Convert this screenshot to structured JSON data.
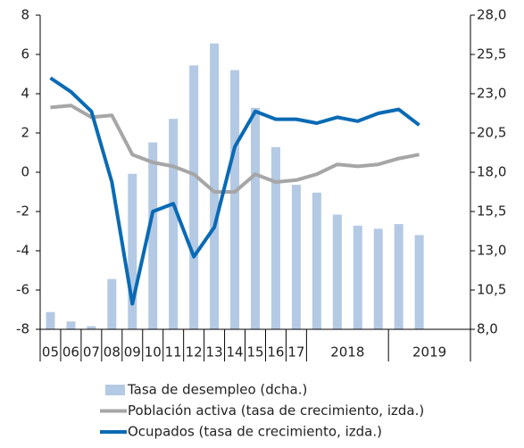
{
  "chart_data": {
    "type": "bar-line",
    "categories": [
      "05",
      "06",
      "07",
      "08",
      "09",
      "10",
      "11",
      "12",
      "13",
      "14",
      "15",
      "16",
      "17",
      null,
      null,
      null,
      null,
      null,
      null,
      null,
      null
    ],
    "x_groups": [
      {
        "label": "2018",
        "start": 13,
        "end": 16
      },
      {
        "label": "2019",
        "start": 17,
        "end": 20
      }
    ],
    "series": [
      {
        "name": "Tasa de desempleo (dcha.)",
        "type": "bar",
        "axis": "y2",
        "color": "#b4c9e4",
        "values": [
          9.1,
          8.5,
          8.2,
          11.2,
          17.9,
          19.9,
          21.4,
          24.8,
          26.2,
          24.5,
          22.1,
          19.6,
          17.2,
          16.7,
          15.3,
          14.6,
          14.4,
          14.7,
          14.0,
          null,
          null
        ]
      },
      {
        "name": "Población activa (tasa de crecimiento, izda.)",
        "type": "line",
        "color": "#a6a6a6",
        "values": [
          3.3,
          3.4,
          2.8,
          2.9,
          0.9,
          0.5,
          0.3,
          -0.1,
          -1.0,
          -1.0,
          -0.1,
          -0.5,
          -0.4,
          -0.1,
          0.4,
          0.3,
          0.4,
          0.7,
          0.9,
          null,
          null
        ]
      },
      {
        "name": "Ocupados (tasa de crecimiento, izda.)",
        "type": "line",
        "color": "#0a6ab4",
        "values": [
          4.8,
          4.1,
          3.1,
          -0.5,
          -6.7,
          -2.0,
          -1.6,
          -4.3,
          -2.8,
          1.3,
          3.1,
          2.7,
          2.7,
          2.5,
          2.8,
          2.6,
          3.0,
          3.2,
          2.4,
          null,
          null
        ]
      }
    ],
    "ylim": [
      -8,
      8
    ],
    "yticks": [
      -8,
      -6,
      -4,
      -2,
      0,
      2,
      4,
      6,
      8
    ],
    "y2lim": [
      8,
      28
    ],
    "y2ticks": [
      {
        "value": 8,
        "label": "8,0"
      },
      {
        "value": 10.5,
        "label": "10,5"
      },
      {
        "value": 13,
        "label": "13,0"
      },
      {
        "value": 15.5,
        "label": "15,5"
      },
      {
        "value": 18,
        "label": "18,0"
      },
      {
        "value": 20.5,
        "label": "20,5"
      },
      {
        "value": 23,
        "label": "23,0"
      },
      {
        "value": 25.5,
        "label": "25,5"
      },
      {
        "value": 28,
        "label": "28,0"
      }
    ]
  }
}
